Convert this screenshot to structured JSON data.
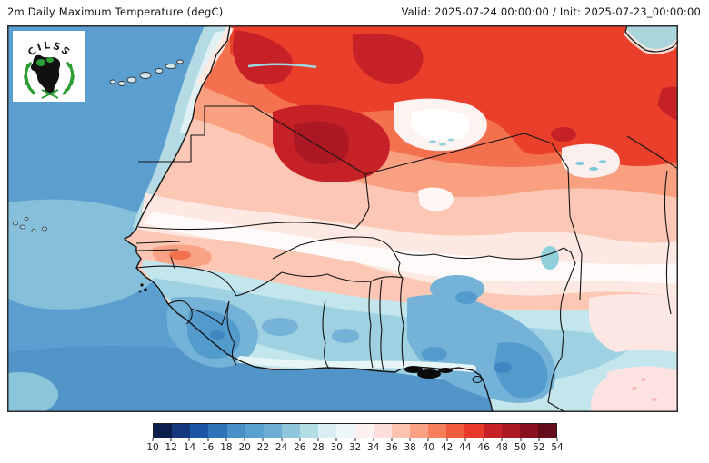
{
  "header": {
    "title": "2m Daily Maximum Temperature (degC)",
    "validity": "Valid: 2025-07-24 00:00:00 / Init: 2025-07-23_00:00:00"
  },
  "logo": {
    "org": "CILSS"
  },
  "colorbar": {
    "units": "degC",
    "ticks": [
      "10",
      "12",
      "14",
      "16",
      "18",
      "20",
      "22",
      "24",
      "26",
      "28",
      "30",
      "32",
      "34",
      "36",
      "38",
      "40",
      "42",
      "44",
      "46",
      "48",
      "50",
      "52",
      "54"
    ],
    "colors": [
      "#0c1e4d",
      "#15397c",
      "#1a56a4",
      "#2e74b8",
      "#4890c5",
      "#599fd0",
      "#6cacd5",
      "#8ec4dc",
      "#b2dde3",
      "#d9eef2",
      "#eff8f9",
      "#fdf2f0",
      "#fcdedb",
      "#fbc4b0",
      "#f9a286",
      "#f67f5c",
      "#f15b3e",
      "#e93a2a",
      "#c62127",
      "#ab1823",
      "#8a1120",
      "#650c1b"
    ]
  },
  "chart_data": {
    "type": "heatmap",
    "subtype": "filled-contour temperature map",
    "title": "2m Daily Maximum Temperature (degC)",
    "valid_time": "2025-07-24 00:00:00",
    "init_time": "2025-07-23_00:00:00",
    "units": "degC",
    "levels_degC": [
      10,
      12,
      14,
      16,
      18,
      20,
      22,
      24,
      26,
      28,
      30,
      32,
      34,
      36,
      38,
      40,
      42,
      44,
      46,
      48,
      50,
      52,
      54
    ],
    "palette": [
      "#0c1e4d",
      "#15397c",
      "#1a56a4",
      "#2e74b8",
      "#4890c5",
      "#599fd0",
      "#6cacd5",
      "#8ec4dc",
      "#b2dde3",
      "#d9eef2",
      "#eff8f9",
      "#fdf2f0",
      "#fcdedb",
      "#fbc4b0",
      "#f9a286",
      "#f67f5c",
      "#f15b3e",
      "#e93a2a",
      "#c62127",
      "#ab1823",
      "#8a1120",
      "#650c1b"
    ],
    "legend_position": "bottom",
    "map_extent": "West Africa and adjacent Atlantic (Sahara to Gulf of Guinea, Canary Islands to Chad)",
    "region_values": [
      {
        "region": "Atlantic Ocean offshore",
        "approx_temp_degC": "20-22"
      },
      {
        "region": "Atlantic lighter bands (west / SW)",
        "approx_temp_degC": "22-26"
      },
      {
        "region": "NW African coastal upwelling strip",
        "approx_temp_degC": "26-30"
      },
      {
        "region": "Morocco / NW Sahara hot patch",
        "approx_temp_degC": "46-48"
      },
      {
        "region": "Northern Mali / S Algeria hotspot core",
        "approx_temp_degC": "48-50"
      },
      {
        "region": "Central-eastern Sahara band",
        "approx_temp_degC": "42-46"
      },
      {
        "region": "Adrar / central cool white patch",
        "approx_temp_degC": "30-34"
      },
      {
        "region": "Air mountains (Niger)",
        "approx_temp_degC": "28-32"
      },
      {
        "region": "Sahel transition band",
        "approx_temp_degC": "30-36"
      },
      {
        "region": "Senegal interior warm spots",
        "approx_temp_degC": "38-42"
      },
      {
        "region": "Guinea highlands",
        "approx_temp_degC": "20-24"
      },
      {
        "region": "Gulf of Guinea coastal strip",
        "approx_temp_degC": "26-30"
      },
      {
        "region": "Central Nigeria / Jos Plateau",
        "approx_temp_degC": "22-26"
      },
      {
        "region": "Cameroon highlands",
        "approx_temp_degC": "16-22"
      },
      {
        "region": "Lake Chad area",
        "approx_temp_degC": "24-26"
      },
      {
        "region": "Mediterranean inlet (NE corner)",
        "approx_temp_degC": "24-28"
      },
      {
        "region": "Bottom-right interior (CAR direction)",
        "approx_temp_degC": "28-34"
      }
    ],
    "features": [
      "national borders (black)",
      "coastlines (black)",
      "Canary Islands",
      "Cape Verde Islands",
      "coastal lagoons drawn black",
      "Lake Chad",
      "CILSS logo overlay"
    ]
  }
}
